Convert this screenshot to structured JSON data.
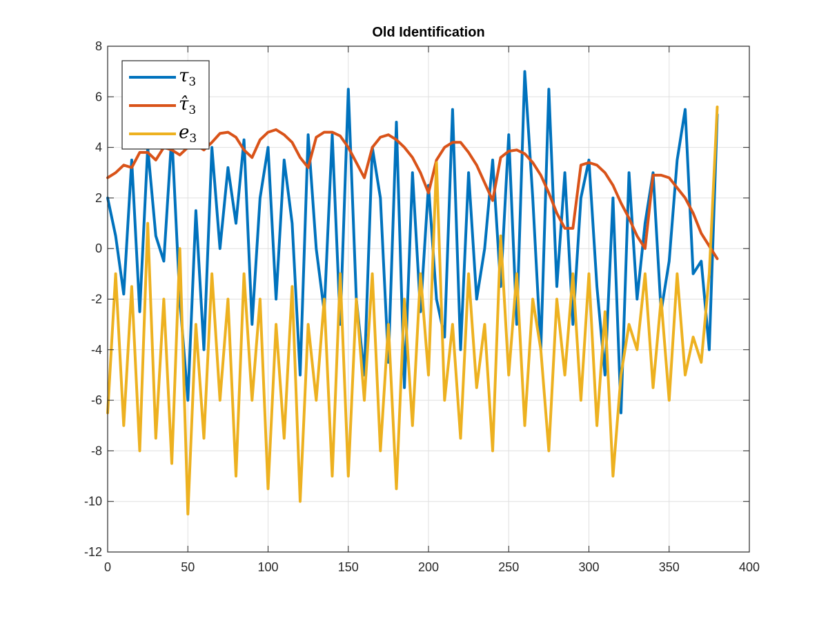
{
  "chart_data": {
    "type": "line",
    "title": "Old Identification",
    "xlabel": "",
    "ylabel": "",
    "xlim": [
      0,
      400
    ],
    "ylim": [
      -12,
      8
    ],
    "xticks": [
      0,
      50,
      100,
      150,
      200,
      250,
      300,
      350,
      400
    ],
    "yticks": [
      -12,
      -10,
      -8,
      -6,
      -4,
      -2,
      0,
      2,
      4,
      6,
      8
    ],
    "xtick_labels": [
      "0",
      "50",
      "100",
      "150",
      "200",
      "250",
      "300",
      "350",
      "400"
    ],
    "ytick_labels": [
      "-12",
      "-10",
      "-8",
      "-6",
      "-4",
      "-2",
      "0",
      "2",
      "4",
      "6",
      "8"
    ],
    "grid": true,
    "legend_position": "top-left",
    "series": [
      {
        "name": "τ3",
        "legend_main": "τ",
        "legend_sub": "3",
        "color": "#0072BD",
        "x": [
          0,
          5,
          10,
          15,
          20,
          25,
          30,
          35,
          40,
          45,
          50,
          55,
          60,
          65,
          70,
          75,
          80,
          85,
          90,
          95,
          100,
          105,
          110,
          115,
          120,
          125,
          130,
          135,
          140,
          145,
          150,
          155,
          160,
          165,
          170,
          175,
          180,
          185,
          190,
          195,
          200,
          205,
          210,
          215,
          220,
          225,
          230,
          235,
          240,
          245,
          250,
          255,
          260,
          265,
          270,
          275,
          280,
          285,
          290,
          295,
          300,
          305,
          310,
          315,
          320,
          325,
          330,
          335,
          340,
          345,
          350,
          355,
          360,
          365,
          370,
          375,
          380
        ],
        "y": [
          2,
          0.5,
          -1.8,
          3.5,
          -2.5,
          4,
          0.5,
          -0.5,
          4.5,
          -2,
          -6,
          1.5,
          -4,
          4,
          0,
          3.2,
          1,
          4.3,
          -3,
          2,
          4,
          -2,
          3.5,
          1,
          -5,
          4.5,
          0,
          -2.5,
          4.5,
          -3,
          6.3,
          -2,
          -5,
          4,
          2,
          -4.5,
          5,
          -5.5,
          3,
          -2.5,
          2.5,
          -2,
          -3.5,
          5.5,
          -4,
          3,
          -2,
          0,
          3.5,
          -1.5,
          4.5,
          -3,
          7,
          2,
          -4,
          6.3,
          -1.5,
          3,
          -3,
          2,
          3.5,
          -1.5,
          -5,
          2,
          -6.5,
          3,
          -2,
          1,
          3,
          -2.5,
          -0.5,
          3.5,
          5.5,
          -1,
          -0.5,
          -4,
          5.3
        ]
      },
      {
        "name": "τ̂3",
        "legend_main": "τ̂",
        "legend_sub": "3",
        "color": "#D95319",
        "x": [
          0,
          5,
          10,
          15,
          20,
          25,
          30,
          35,
          40,
          45,
          50,
          55,
          60,
          65,
          70,
          75,
          80,
          85,
          90,
          95,
          100,
          105,
          110,
          115,
          120,
          125,
          130,
          135,
          140,
          145,
          150,
          155,
          160,
          165,
          170,
          175,
          180,
          185,
          190,
          195,
          200,
          205,
          210,
          215,
          220,
          225,
          230,
          235,
          240,
          245,
          250,
          255,
          260,
          265,
          270,
          275,
          280,
          285,
          290,
          295,
          300,
          305,
          310,
          315,
          320,
          325,
          330,
          335,
          340,
          345,
          350,
          355,
          360,
          365,
          370,
          375,
          380
        ],
        "y": [
          2.8,
          3.0,
          3.3,
          3.2,
          3.8,
          3.8,
          3.5,
          4.0,
          3.9,
          3.7,
          4.0,
          4.1,
          3.9,
          4.2,
          4.55,
          4.6,
          4.4,
          3.9,
          3.6,
          4.3,
          4.6,
          4.7,
          4.5,
          4.2,
          3.6,
          3.2,
          4.4,
          4.6,
          4.6,
          4.45,
          4.0,
          3.4,
          2.8,
          4.0,
          4.4,
          4.5,
          4.3,
          4.0,
          3.6,
          3.0,
          2.2,
          3.5,
          4.0,
          4.2,
          4.2,
          3.8,
          3.3,
          2.6,
          1.9,
          3.6,
          3.85,
          3.9,
          3.75,
          3.4,
          2.9,
          2.2,
          1.4,
          0.8,
          0.8,
          3.3,
          3.4,
          3.3,
          3.0,
          2.5,
          1.8,
          1.2,
          0.5,
          0.0,
          2.9,
          2.9,
          2.8,
          2.4,
          2.0,
          1.4,
          0.6,
          0.1,
          -0.4
        ]
      },
      {
        "name": "e3",
        "legend_main": "e",
        "legend_sub": "3",
        "color": "#EDB120",
        "x": [
          0,
          5,
          10,
          15,
          20,
          25,
          30,
          35,
          40,
          45,
          50,
          55,
          60,
          65,
          70,
          75,
          80,
          85,
          90,
          95,
          100,
          105,
          110,
          115,
          120,
          125,
          130,
          135,
          140,
          145,
          150,
          155,
          160,
          165,
          170,
          175,
          180,
          185,
          190,
          195,
          200,
          205,
          210,
          215,
          220,
          225,
          230,
          235,
          240,
          245,
          250,
          255,
          260,
          265,
          270,
          275,
          280,
          285,
          290,
          295,
          300,
          305,
          310,
          315,
          320,
          325,
          330,
          335,
          340,
          345,
          350,
          355,
          360,
          365,
          370,
          375,
          380
        ],
        "y": [
          -6.5,
          -1,
          -7,
          -1.5,
          -8,
          1,
          -7.5,
          -2,
          -8.5,
          0,
          -10.5,
          -3,
          -7.5,
          -1,
          -6,
          -2,
          -9,
          -1,
          -6,
          -2,
          -9.5,
          -3,
          -7.5,
          -1.5,
          -10,
          -3,
          -6,
          -2,
          -9,
          -1,
          -9,
          -2,
          -6,
          -1,
          -8,
          -3,
          -9.5,
          -2,
          -7,
          -1,
          -5,
          3.4,
          -6,
          -3,
          -7.5,
          -1,
          -5.5,
          -3,
          -8,
          0.5,
          -5,
          -1,
          -7,
          -2,
          -4,
          -8,
          -2,
          -5,
          -1,
          -6,
          -1,
          -7,
          -2.5,
          -9,
          -5,
          -3,
          -4,
          -1,
          -5.5,
          -2,
          -6,
          -1,
          -5,
          -3.5,
          -4.5,
          -1,
          5.6
        ]
      }
    ]
  }
}
